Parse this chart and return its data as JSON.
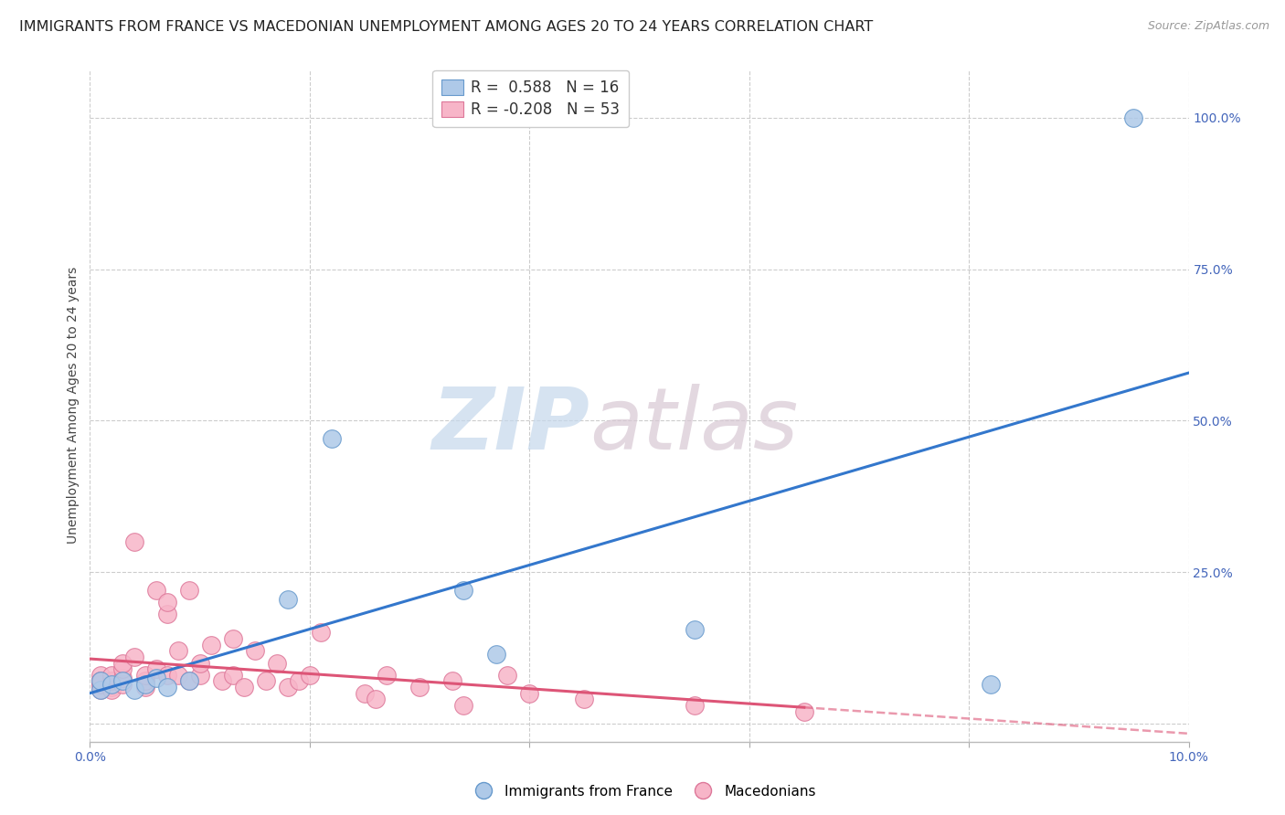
{
  "title": "IMMIGRANTS FROM FRANCE VS MACEDONIAN UNEMPLOYMENT AMONG AGES 20 TO 24 YEARS CORRELATION CHART",
  "source": "Source: ZipAtlas.com",
  "ylabel": "Unemployment Among Ages 20 to 24 years",
  "xlim": [
    0.0,
    0.1
  ],
  "ylim": [
    -0.03,
    1.08
  ],
  "xticks": [
    0.0,
    0.02,
    0.04,
    0.06,
    0.08,
    0.1
  ],
  "xticklabels": [
    "0.0%",
    "",
    "",
    "",
    "",
    "10.0%"
  ],
  "yticks_right": [
    0.0,
    0.25,
    0.5,
    0.75,
    1.0
  ],
  "yticklabels_right": [
    "",
    "25.0%",
    "50.0%",
    "75.0%",
    "100.0%"
  ],
  "blue_R": "0.588",
  "blue_N": "16",
  "pink_R": "-0.208",
  "pink_N": "53",
  "blue_label": "Immigrants from France",
  "pink_label": "Macedonians",
  "blue_face_color": "#aec9e8",
  "pink_face_color": "#f7b5c8",
  "blue_edge_color": "#6699cc",
  "pink_edge_color": "#dd7799",
  "blue_line_color": "#3377cc",
  "pink_line_color": "#dd5577",
  "background_color": "#ffffff",
  "grid_color": "#cccccc",
  "tick_color": "#4466bb",
  "title_color": "#222222",
  "source_color": "#999999",
  "ylabel_color": "#444444",
  "watermark_zip_color": "#c5d8ec",
  "watermark_atlas_color": "#d8c8d4",
  "blue_points_x": [
    0.001,
    0.001,
    0.002,
    0.003,
    0.004,
    0.005,
    0.006,
    0.007,
    0.009,
    0.018,
    0.022,
    0.034,
    0.037,
    0.055,
    0.082,
    0.095
  ],
  "blue_points_y": [
    0.055,
    0.07,
    0.065,
    0.07,
    0.055,
    0.065,
    0.075,
    0.06,
    0.07,
    0.205,
    0.47,
    0.22,
    0.115,
    0.155,
    0.065,
    1.0
  ],
  "pink_points_x": [
    0.001,
    0.001,
    0.001,
    0.001,
    0.001,
    0.001,
    0.002,
    0.002,
    0.002,
    0.002,
    0.003,
    0.003,
    0.003,
    0.003,
    0.004,
    0.004,
    0.005,
    0.005,
    0.005,
    0.006,
    0.006,
    0.007,
    0.007,
    0.007,
    0.008,
    0.008,
    0.009,
    0.009,
    0.01,
    0.01,
    0.011,
    0.012,
    0.013,
    0.013,
    0.014,
    0.015,
    0.016,
    0.017,
    0.018,
    0.019,
    0.02,
    0.021,
    0.025,
    0.026,
    0.027,
    0.03,
    0.033,
    0.034,
    0.038,
    0.04,
    0.045,
    0.055,
    0.065
  ],
  "pink_points_y": [
    0.065,
    0.055,
    0.07,
    0.08,
    0.065,
    0.07,
    0.06,
    0.055,
    0.07,
    0.08,
    0.065,
    0.075,
    0.09,
    0.1,
    0.11,
    0.3,
    0.06,
    0.07,
    0.08,
    0.09,
    0.22,
    0.08,
    0.18,
    0.2,
    0.12,
    0.08,
    0.07,
    0.22,
    0.08,
    0.1,
    0.13,
    0.07,
    0.08,
    0.14,
    0.06,
    0.12,
    0.07,
    0.1,
    0.06,
    0.07,
    0.08,
    0.15,
    0.05,
    0.04,
    0.08,
    0.06,
    0.07,
    0.03,
    0.08,
    0.05,
    0.04,
    0.03,
    0.02
  ],
  "title_fontsize": 11.5,
  "source_fontsize": 9,
  "label_fontsize": 10,
  "tick_fontsize": 10,
  "legend_fontsize": 12
}
